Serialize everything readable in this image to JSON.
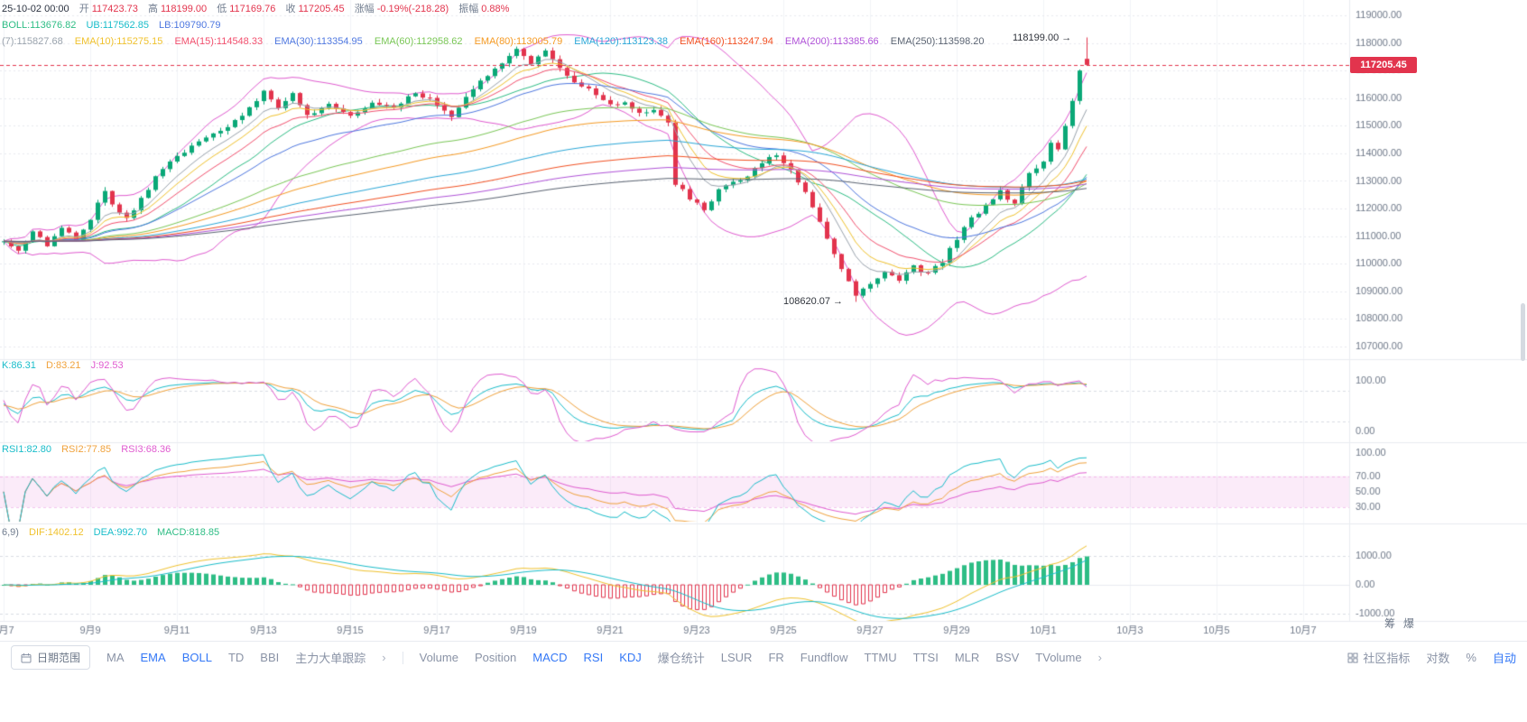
{
  "header": {
    "datetime": "25-10-02 00:00",
    "open_label": "开",
    "open": "117423.73",
    "high_label": "高",
    "high": "118199.00",
    "low_label": "低",
    "low": "117169.76",
    "close_label": "收",
    "close": "117205.45",
    "change_label": "涨幅",
    "change": "-0.19%(-218.28)",
    "amplitude_label": "振幅",
    "amplitude": "0.88%"
  },
  "boll_legend": {
    "mid": "BOLL:113676.82",
    "ub": "UB:117562.85",
    "lb": "LB:109790.79"
  },
  "ema_legend": {
    "e7": "(7):115827.68",
    "e10": "EMA(10):115275.15",
    "e15": "EMA(15):114548.33",
    "e30": "EMA(30):113354.95",
    "e60": "EMA(60):112958.62",
    "e80": "EMA(80):113005.79",
    "e120": "EMA(120):113123.38",
    "e160": "EMA(160):113247.94",
    "e200": "EMA(200):113385.66",
    "e250": "EMA(250):113598.20"
  },
  "kdj_legend": {
    "k": "K:86.31",
    "d": "D:83.21",
    "j": "J:92.53"
  },
  "rsi_legend": {
    "r1": "RSI1:82.80",
    "r2": "RSI2:77.85",
    "r3": "RSI3:68.36"
  },
  "macd_legend": {
    "params": "6,9)",
    "dif": "DIF:1402.12",
    "dea": "DEA:992.70",
    "macd": "MACD:818.85"
  },
  "annotations": {
    "high": "118199.00 →",
    "low": "108620.07 →"
  },
  "price_tag": "117205.45",
  "side_tools": {
    "chips": "筹",
    "liq": "爆"
  },
  "toolbar": {
    "date_range": "日期范围",
    "main_indicators": [
      {
        "label": "MA",
        "active": false
      },
      {
        "label": "EMA",
        "active": true
      },
      {
        "label": "BOLL",
        "active": true
      },
      {
        "label": "TD",
        "active": false
      },
      {
        "label": "BBI",
        "active": false
      },
      {
        "label": "主力大单跟踪",
        "active": false
      }
    ],
    "more_left": "›",
    "sub_indicators": [
      {
        "label": "Volume",
        "active": false
      },
      {
        "label": "Position",
        "active": false
      },
      {
        "label": "MACD",
        "active": true
      },
      {
        "label": "RSI",
        "active": true
      },
      {
        "label": "KDJ",
        "active": true
      },
      {
        "label": "爆仓统计",
        "active": false
      },
      {
        "label": "LSUR",
        "active": false
      },
      {
        "label": "FR",
        "active": false
      },
      {
        "label": "Fundflow",
        "active": false
      },
      {
        "label": "TTMU",
        "active": false
      },
      {
        "label": "TTSI",
        "active": false
      },
      {
        "label": "MLR",
        "active": false
      },
      {
        "label": "BSV",
        "active": false
      },
      {
        "label": "TVolume",
        "active": false
      }
    ],
    "more_right": "›",
    "community": "社区指标",
    "log_scale": "对数",
    "percent": "%",
    "auto": "自动"
  },
  "chart_data": {
    "type": "candlestick",
    "timeframe_note": "4h candles, 2025-09-07 through 2025-10-02 00:00",
    "current_price": 117205.45,
    "price_axis_ticks": [
      119000,
      118000,
      117000,
      116000,
      115000,
      114000,
      113000,
      112000,
      111000,
      110000,
      109000,
      108000,
      107000
    ],
    "x_ticks": [
      {
        "label": "9月7",
        "i": 0
      },
      {
        "label": "9月9",
        "i": 12
      },
      {
        "label": "9月11",
        "i": 24
      },
      {
        "label": "9月13",
        "i": 36
      },
      {
        "label": "9月15",
        "i": 48
      },
      {
        "label": "9月17",
        "i": 60
      },
      {
        "label": "9月19",
        "i": 72
      },
      {
        "label": "9月21",
        "i": 84
      },
      {
        "label": "9月23",
        "i": 96
      },
      {
        "label": "9月25",
        "i": 108
      },
      {
        "label": "9月27",
        "i": 120
      },
      {
        "label": "9月29",
        "i": 132
      },
      {
        "label": "10月1",
        "i": 144
      },
      {
        "label": "10月3",
        "i": 156
      },
      {
        "label": "10月5",
        "i": 168
      },
      {
        "label": "10月7",
        "i": 180
      }
    ],
    "kdj_axis_ticks": [
      100,
      0
    ],
    "kdj_dashed_levels": [
      80,
      20
    ],
    "rsi_axis_ticks": [
      100,
      70,
      50,
      30
    ],
    "rsi_band": [
      70,
      30
    ],
    "macd_axis_ticks": [
      1000,
      0,
      -1000
    ],
    "candle_count": 151,
    "close_anchors": [
      [
        0,
        110900
      ],
      [
        2,
        110500
      ],
      [
        4,
        111100
      ],
      [
        6,
        110700
      ],
      [
        8,
        111300
      ],
      [
        10,
        110800
      ],
      [
        12,
        111600
      ],
      [
        14,
        112700
      ],
      [
        15,
        112100
      ],
      [
        17,
        111600
      ],
      [
        19,
        112400
      ],
      [
        21,
        113100
      ],
      [
        24,
        113900
      ],
      [
        27,
        114500
      ],
      [
        30,
        114800
      ],
      [
        33,
        115300
      ],
      [
        36,
        116300
      ],
      [
        38,
        115700
      ],
      [
        40,
        116200
      ],
      [
        42,
        115400
      ],
      [
        45,
        115800
      ],
      [
        48,
        115300
      ],
      [
        51,
        115900
      ],
      [
        54,
        115600
      ],
      [
        57,
        116200
      ],
      [
        60,
        115800
      ],
      [
        62,
        115300
      ],
      [
        64,
        116000
      ],
      [
        66,
        116600
      ],
      [
        69,
        117300
      ],
      [
        71,
        117800
      ],
      [
        73,
        117300
      ],
      [
        75,
        117700
      ],
      [
        78,
        116800
      ],
      [
        81,
        116300
      ],
      [
        84,
        115700
      ],
      [
        86,
        115900
      ],
      [
        88,
        115400
      ],
      [
        90,
        115600
      ],
      [
        92,
        115100
      ],
      [
        93,
        112900
      ],
      [
        95,
        112400
      ],
      [
        97,
        111900
      ],
      [
        99,
        112700
      ],
      [
        102,
        113000
      ],
      [
        105,
        113700
      ],
      [
        107,
        113900
      ],
      [
        109,
        113400
      ],
      [
        111,
        112600
      ],
      [
        113,
        111600
      ],
      [
        115,
        110300
      ],
      [
        117,
        109400
      ],
      [
        118,
        108900
      ],
      [
        120,
        109300
      ],
      [
        122,
        109700
      ],
      [
        124,
        109400
      ],
      [
        126,
        109900
      ],
      [
        128,
        109600
      ],
      [
        130,
        110100
      ],
      [
        132,
        110900
      ],
      [
        134,
        111600
      ],
      [
        136,
        112100
      ],
      [
        138,
        112600
      ],
      [
        140,
        112200
      ],
      [
        142,
        113200
      ],
      [
        144,
        113700
      ],
      [
        145,
        114400
      ],
      [
        146,
        114200
      ],
      [
        147,
        115000
      ],
      [
        148,
        115900
      ],
      [
        149,
        117000
      ],
      [
        150,
        117205
      ]
    ],
    "last_candle": {
      "open": 117423.73,
      "high": 118199.0,
      "low": 117169.76,
      "close": 117205.45
    },
    "low_index": 118,
    "low_value": 108620.07,
    "high_value": 118199.0,
    "indicators": {
      "ema_periods": [
        7,
        10,
        15,
        30,
        60,
        80,
        120,
        160,
        200,
        250
      ],
      "boll": {
        "period": 20,
        "mult": 2
      },
      "kdj": {
        "k": 86.31,
        "d": 83.21,
        "j": 92.53
      },
      "rsi": {
        "rsi1": 82.8,
        "rsi2": 77.85,
        "rsi3": 68.36
      },
      "macd": {
        "dif": 1402.12,
        "dea": 992.7,
        "macd": 818.85
      }
    },
    "colors": {
      "up": "#0aa877",
      "down": "#e2344d",
      "current_line": "#e2344d",
      "ema": {
        "7": "#9aa3ad",
        "10": "#f0c22e",
        "15": "#f2506e",
        "30": "#4f78e0",
        "60": "#7ac756",
        "80": "#f59a23",
        "120": "#2aa7d8",
        "160": "#f25022",
        "200": "#b052d8",
        "250": "#5b6472"
      },
      "boll_mid": "#2ebd85",
      "boll_band": "#e05bd0",
      "kdj_k": "#19bdca",
      "kdj_d": "#f0a23c",
      "kdj_j": "#e05bd0",
      "rsi1": "#19bdca",
      "rsi2": "#f0a23c",
      "rsi3": "#e05bd0",
      "macd_dif": "#f0c22e",
      "macd_dea": "#19bdca",
      "hist_up": "#2ebd85",
      "hist_down": "#e2344d",
      "grid": "#eef0f4",
      "axis_text": "#707a8a"
    }
  }
}
